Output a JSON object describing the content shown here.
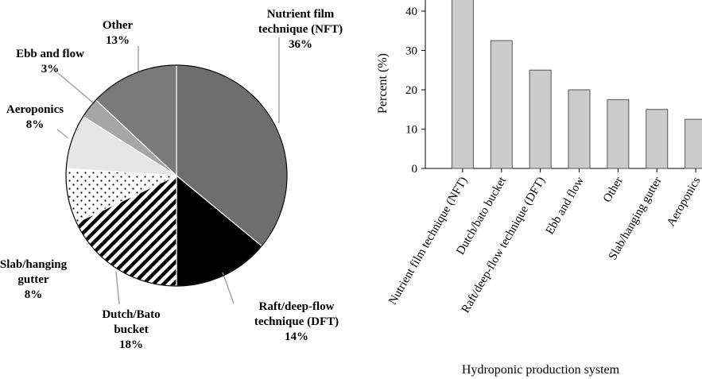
{
  "chart_data": [
    {
      "type": "pie",
      "slices": [
        {
          "lines": [
            "Nutrient film",
            "technique (NFT)",
            "36%"
          ],
          "value": 36,
          "color": "#6e6e6e",
          "pattern": "solid"
        },
        {
          "lines": [
            "Raft/deep-flow",
            "technique (DFT)",
            "14%"
          ],
          "value": 14,
          "color": "#000000",
          "pattern": "solid"
        },
        {
          "lines": [
            "Dutch/Bato",
            "bucket",
            "18%"
          ],
          "value": 18,
          "color": "#000000",
          "pattern": "diagonal-stripes"
        },
        {
          "lines": [
            "Slab/hanging",
            "gutter",
            "8%"
          ],
          "value": 8,
          "color": "#ffffff",
          "pattern": "dots"
        },
        {
          "lines": [
            "Aeroponics",
            "8%"
          ],
          "value": 8,
          "color": "#e6e6e6",
          "pattern": "solid"
        },
        {
          "lines": [
            "Ebb and flow",
            "3%"
          ],
          "value": 3,
          "color": "#a6a6a6",
          "pattern": "solid"
        },
        {
          "lines": [
            "Other",
            "13%"
          ],
          "value": 13,
          "color": "#7a7a7a",
          "pattern": "solid"
        }
      ]
    },
    {
      "type": "bar",
      "categories": [
        "Nutrient film technique (NFT)",
        "Dutch/bato bucket",
        "Raft/deep-flow technique (DFT)",
        "Ebb and flow",
        "Other",
        "Slab/hanging gutter",
        "Aeroponics"
      ],
      "values": [
        45,
        32.5,
        25,
        20,
        17.5,
        15,
        12.5
      ],
      "xlabel": "Hydroponic production system",
      "ylabel": "Percent (%)",
      "yticks": [
        "0",
        "10",
        "20",
        "30",
        "40"
      ],
      "ylim": [
        0,
        45
      ],
      "bar_color": "#cccccc"
    }
  ]
}
